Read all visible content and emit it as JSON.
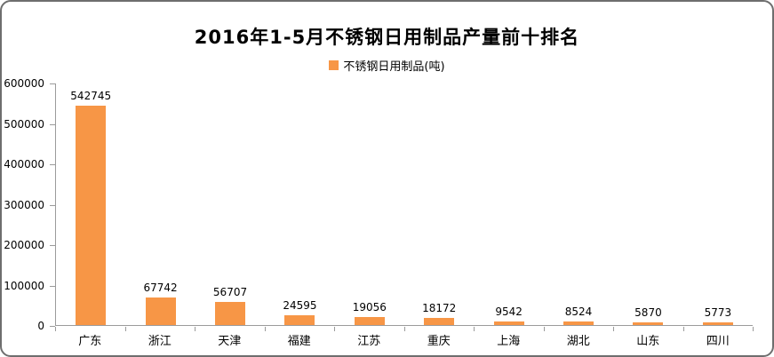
{
  "title": "2016年1-5月不锈钢日用制品产量前十排名",
  "legend": {
    "label": "不锈钢日用制品(吨)",
    "swatch_color": "#F79646"
  },
  "colors": {
    "bar": "#F79646",
    "axis": "#9b9b9b",
    "text": "#000000",
    "background": "#ffffff"
  },
  "chart_data": {
    "type": "bar",
    "title": "2016年1-5月不锈钢日用制品产量前十排名",
    "categories": [
      "广东",
      "浙江",
      "天津",
      "福建",
      "江苏",
      "重庆",
      "上海",
      "湖北",
      "山东",
      "四川"
    ],
    "values": [
      542745,
      67742,
      56707,
      24595,
      19056,
      18172,
      9542,
      8524,
      5870,
      5773
    ],
    "series_name": "不锈钢日用制品(吨)",
    "xlabel": "",
    "ylabel": "",
    "ylim": [
      0,
      600000
    ],
    "yticks": [
      0,
      100000,
      200000,
      300000,
      400000,
      500000,
      600000
    ],
    "grid": false,
    "legend_position": "top-center",
    "data_labels": true,
    "bar_color": "#F79646"
  }
}
